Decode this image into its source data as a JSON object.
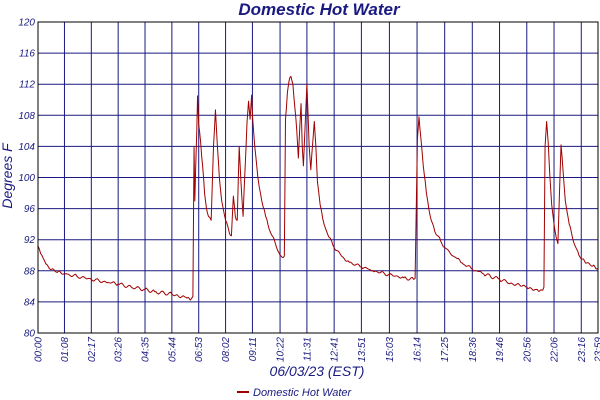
{
  "chart_data": {
    "type": "line",
    "title": "Domestic Hot Water",
    "xlabel": "06/03/23 (EST)",
    "ylabel": "Degrees F",
    "ylim": [
      80,
      120
    ],
    "yticks": [
      80,
      84,
      88,
      92,
      96,
      100,
      104,
      108,
      112,
      116,
      120
    ],
    "xlim": [
      "00:00",
      "23:59"
    ],
    "xtick_labels": [
      "00:00",
      "01:08",
      "02:17",
      "03:26",
      "04:35",
      "05:44",
      "06:53",
      "08:02",
      "09:11",
      "10:22",
      "11:31",
      "12:41",
      "13:51",
      "15:03",
      "16:14",
      "17:25",
      "18:36",
      "19:46",
      "20:56",
      "22:06",
      "23:16",
      "23:59"
    ],
    "grid": true,
    "legend_position": "bottom-center",
    "series": [
      {
        "name": "Domestic Hot Water",
        "color": "#a00000",
        "points": [
          [
            "00:00",
            91.2
          ],
          [
            "00:10",
            90.0
          ],
          [
            "00:20",
            88.9
          ],
          [
            "00:35",
            88.2
          ],
          [
            "00:50",
            87.8
          ],
          [
            "01:08",
            87.6
          ],
          [
            "01:40",
            87.3
          ],
          [
            "02:17",
            86.9
          ],
          [
            "03:00",
            86.5
          ],
          [
            "03:26",
            86.3
          ],
          [
            "04:00",
            85.9
          ],
          [
            "04:35",
            85.6
          ],
          [
            "05:00",
            85.3
          ],
          [
            "05:44",
            85.0
          ],
          [
            "06:20",
            84.6
          ],
          [
            "06:34",
            84.4
          ],
          [
            "06:38",
            84.7
          ],
          [
            "06:41",
            103.9
          ],
          [
            "06:43",
            97.0
          ],
          [
            "06:45",
            101.0
          ],
          [
            "06:48",
            106.0
          ],
          [
            "06:50",
            110.5
          ],
          [
            "06:53",
            106.8
          ],
          [
            "06:58",
            104.5
          ],
          [
            "07:03",
            101.5
          ],
          [
            "07:08",
            98.0
          ],
          [
            "07:13",
            96.0
          ],
          [
            "07:18",
            95.0
          ],
          [
            "07:25",
            94.5
          ],
          [
            "07:31",
            104.0
          ],
          [
            "07:36",
            108.7
          ],
          [
            "07:41",
            104.0
          ],
          [
            "07:46",
            100.0
          ],
          [
            "07:52",
            97.0
          ],
          [
            "08:02",
            94.5
          ],
          [
            "08:12",
            92.8
          ],
          [
            "08:17",
            92.5
          ],
          [
            "08:22",
            97.6
          ],
          [
            "08:27",
            95.0
          ],
          [
            "08:32",
            94.5
          ],
          [
            "08:37",
            104.0
          ],
          [
            "08:42",
            99.0
          ],
          [
            "08:47",
            95.0
          ],
          [
            "08:52",
            101.0
          ],
          [
            "08:57",
            107.0
          ],
          [
            "09:01",
            109.8
          ],
          [
            "09:05",
            107.5
          ],
          [
            "09:09",
            110.6
          ],
          [
            "09:11",
            108.0
          ],
          [
            "09:17",
            104.0
          ],
          [
            "09:25",
            100.0
          ],
          [
            "09:35",
            97.0
          ],
          [
            "09:45",
            95.0
          ],
          [
            "09:57",
            93.0
          ],
          [
            "10:10",
            91.5
          ],
          [
            "10:22",
            90.0
          ],
          [
            "10:30",
            89.7
          ],
          [
            "10:33",
            89.9
          ],
          [
            "10:36",
            107.5
          ],
          [
            "10:41",
            111.0
          ],
          [
            "10:45",
            112.4
          ],
          [
            "10:50",
            113.0
          ],
          [
            "10:55",
            112.0
          ],
          [
            "11:00",
            109.0
          ],
          [
            "11:05",
            106.0
          ],
          [
            "11:09",
            102.5
          ],
          [
            "11:13",
            106.8
          ],
          [
            "11:16",
            109.5
          ],
          [
            "11:19",
            104.0
          ],
          [
            "11:22",
            101.5
          ],
          [
            "11:25",
            105.0
          ],
          [
            "11:28",
            108.5
          ],
          [
            "11:31",
            112.0
          ],
          [
            "11:34",
            108.0
          ],
          [
            "11:37",
            103.8
          ],
          [
            "11:41",
            101.0
          ],
          [
            "11:46",
            104.5
          ],
          [
            "11:50",
            107.2
          ],
          [
            "11:54",
            104.0
          ],
          [
            "11:58",
            99.5
          ],
          [
            "12:05",
            96.5
          ],
          [
            "12:15",
            94.0
          ],
          [
            "12:28",
            92.3
          ],
          [
            "12:41",
            91.0
          ],
          [
            "13:00",
            89.9
          ],
          [
            "13:20",
            89.1
          ],
          [
            "13:51",
            88.5
          ],
          [
            "14:20",
            88.0
          ],
          [
            "15:03",
            87.5
          ],
          [
            "15:40",
            87.1
          ],
          [
            "16:05",
            86.9
          ],
          [
            "16:09",
            87.0
          ],
          [
            "16:12",
            96.0
          ],
          [
            "16:15",
            105.0
          ],
          [
            "16:19",
            107.8
          ],
          [
            "16:24",
            105.0
          ],
          [
            "16:30",
            101.5
          ],
          [
            "16:38",
            98.0
          ],
          [
            "16:48",
            95.0
          ],
          [
            "17:00",
            93.0
          ],
          [
            "17:15",
            91.8
          ],
          [
            "17:25",
            91.0
          ],
          [
            "17:50",
            89.8
          ],
          [
            "18:10",
            89.0
          ],
          [
            "18:36",
            88.2
          ],
          [
            "19:05",
            87.6
          ],
          [
            "19:46",
            86.9
          ],
          [
            "20:20",
            86.3
          ],
          [
            "20:56",
            85.9
          ],
          [
            "21:20",
            85.6
          ],
          [
            "21:37",
            85.5
          ],
          [
            "21:40",
            85.9
          ],
          [
            "21:43",
            104.0
          ],
          [
            "21:47",
            107.2
          ],
          [
            "21:51",
            104.5
          ],
          [
            "21:55",
            100.5
          ],
          [
            "22:00",
            96.5
          ],
          [
            "22:06",
            94.0
          ],
          [
            "22:12",
            92.2
          ],
          [
            "22:16",
            91.5
          ],
          [
            "22:20",
            98.0
          ],
          [
            "22:24",
            104.2
          ],
          [
            "22:29",
            101.0
          ],
          [
            "22:35",
            97.0
          ],
          [
            "22:45",
            94.0
          ],
          [
            "22:57",
            91.6
          ],
          [
            "23:10",
            90.0
          ],
          [
            "23:16",
            89.5
          ],
          [
            "23:30",
            89.0
          ],
          [
            "23:45",
            88.6
          ],
          [
            "23:59",
            88.3
          ]
        ]
      }
    ]
  }
}
